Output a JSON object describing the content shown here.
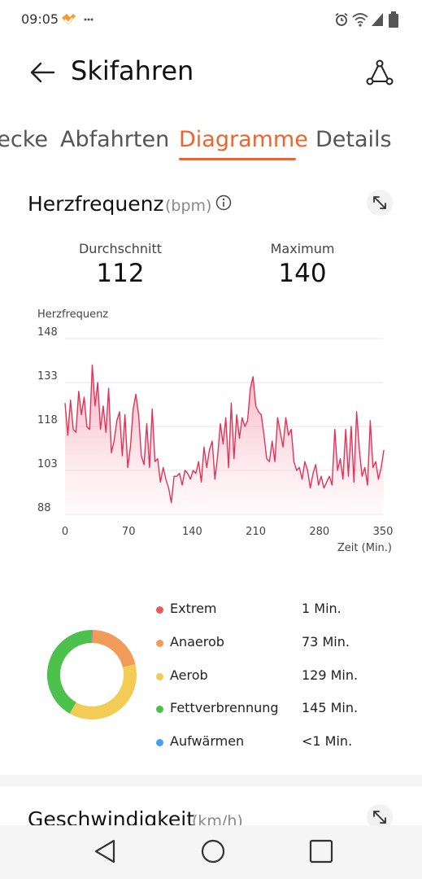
{
  "status_bar": {
    "time": "09:05"
  },
  "header": {
    "title": "Skifahren"
  },
  "tabs": [
    {
      "label": "Strecke",
      "active": false
    },
    {
      "label": "Abfahrten",
      "active": false
    },
    {
      "label": "Diagramme",
      "active": true
    },
    {
      "label": "Details",
      "active": false
    }
  ],
  "heart_rate": {
    "title": "Herzfrequenz",
    "unit": "(bpm)",
    "avg_label": "Durchschnitt",
    "avg_value": "112",
    "max_label": "Maximum",
    "max_value": "140"
  },
  "chart_data": {
    "type": "area",
    "ylabel": "Herzfrequenz",
    "xlabel": "Zeit (Min.)",
    "yticks": [
      148,
      133,
      118,
      103,
      88
    ],
    "xticks": [
      0,
      70,
      140,
      210,
      280,
      350
    ],
    "ylim": [
      88,
      148
    ],
    "xlim": [
      0,
      350
    ],
    "color": "#e3325a",
    "x": [
      0,
      3,
      6,
      9,
      12,
      15,
      18,
      21,
      24,
      27,
      30,
      33,
      36,
      39,
      42,
      45,
      48,
      51,
      54,
      57,
      60,
      63,
      66,
      69,
      72,
      75,
      78,
      81,
      84,
      87,
      90,
      93,
      96,
      99,
      102,
      105,
      108,
      111,
      114,
      117,
      120,
      123,
      126,
      129,
      132,
      135,
      138,
      141,
      144,
      147,
      150,
      153,
      156,
      159,
      162,
      165,
      168,
      171,
      174,
      177,
      180,
      183,
      186,
      189,
      192,
      195,
      198,
      201,
      204,
      207,
      210,
      213,
      216,
      219,
      222,
      225,
      228,
      231,
      234,
      237,
      240,
      243,
      246,
      249,
      252,
      255,
      258,
      261,
      264,
      267,
      270,
      273,
      276,
      279,
      282,
      285,
      288,
      291,
      294,
      297,
      300,
      303,
      306,
      309,
      312,
      315,
      318,
      321,
      324,
      327,
      330,
      333,
      336,
      339,
      342,
      345,
      348,
      351
    ],
    "y": [
      126,
      115,
      127,
      117,
      116,
      130,
      122,
      128,
      118,
      117,
      139,
      125,
      133,
      117,
      125,
      116,
      131,
      109,
      113,
      120,
      123,
      108,
      122,
      104,
      111,
      124,
      129,
      122,
      108,
      105,
      119,
      104,
      124,
      106,
      107,
      99,
      104,
      100,
      97,
      92,
      101,
      101,
      102,
      98,
      103,
      102,
      100,
      103,
      102,
      106,
      99,
      111,
      104,
      110,
      113,
      100,
      108,
      119,
      112,
      121,
      104,
      126,
      107,
      122,
      114,
      121,
      118,
      120,
      131,
      135,
      125,
      123,
      122,
      115,
      107,
      106,
      113,
      106,
      121,
      116,
      111,
      121,
      115,
      117,
      106,
      103,
      104,
      100,
      106,
      103,
      97,
      102,
      105,
      98,
      101,
      97,
      99,
      101,
      98,
      117,
      103,
      107,
      100,
      117,
      101,
      118,
      99,
      123,
      110,
      101,
      104,
      98,
      120,
      104,
      106,
      100,
      104,
      110
    ]
  },
  "zones": [
    {
      "name": "Extrem",
      "value": "1 Min.",
      "color": "#ea5a5a"
    },
    {
      "name": "Anaerob",
      "value": "73 Min.",
      "color": "#f29a57"
    },
    {
      "name": "Aerob",
      "value": "129 Min.",
      "color": "#f3cc56"
    },
    {
      "name": "Fettverbrennung",
      "value": "145 Min.",
      "color": "#4cc14c"
    },
    {
      "name": "Aufwärmen",
      "value": "<1 Min.",
      "color": "#4a9ef0"
    }
  ],
  "speed_section": {
    "title": "Geschwindigkeit",
    "unit": "(km/h)"
  }
}
